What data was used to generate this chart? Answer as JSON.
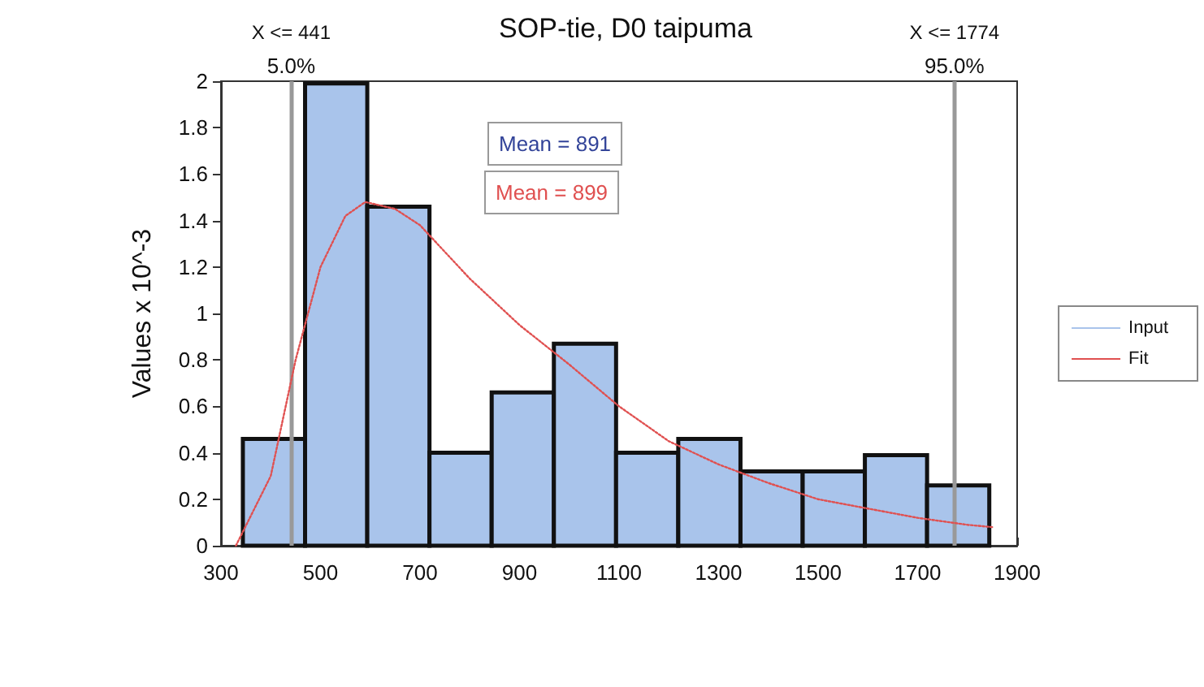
{
  "chart_data": {
    "type": "histogram",
    "title": "SOP-tie, D0 taipuma",
    "ylabel": "Values x 10^-3",
    "bins": [
      344,
      469,
      594,
      719,
      844,
      969,
      1094,
      1219,
      1344,
      1469,
      1594,
      1719,
      1844
    ],
    "series": [
      {
        "name": "Input",
        "color": "#a9c4eb",
        "values": [
          0.46,
          1.99,
          1.46,
          0.4,
          0.66,
          0.87,
          0.4,
          0.46,
          0.32,
          0.32,
          0.39,
          0.26
        ]
      },
      {
        "name": "Fit",
        "type": "line",
        "color": "#e05050",
        "line_style": "dotted",
        "x": [
          330,
          400,
          450,
          500,
          550,
          590,
          650,
          700,
          800,
          900,
          1000,
          1100,
          1200,
          1300,
          1400,
          1500,
          1600,
          1700,
          1800,
          1850
        ],
        "values": [
          0,
          0.3,
          0.8,
          1.2,
          1.42,
          1.48,
          1.45,
          1.38,
          1.15,
          0.95,
          0.78,
          0.6,
          0.45,
          0.35,
          0.27,
          0.2,
          0.16,
          0.12,
          0.09,
          0.08
        ]
      }
    ],
    "xlim": [
      300,
      1900
    ],
    "xticks": [
      300,
      500,
      700,
      900,
      1100,
      1300,
      1500,
      1700,
      1900
    ],
    "ylim": [
      0,
      2
    ],
    "yticks": [
      0,
      0.2,
      0.4,
      0.6,
      0.8,
      1,
      1.2,
      1.4,
      1.6,
      1.8,
      2
    ],
    "ref_lines": [
      {
        "axis": "x",
        "value": 441,
        "label": "X <= 441",
        "color": "#999999"
      },
      {
        "axis": "x",
        "value": 1774,
        "label": "X <= 1774",
        "color": "#999999"
      }
    ],
    "annotations": [
      {
        "text": "5.0%",
        "x": 441,
        "y": 2
      },
      {
        "text": "95.0%",
        "x": 1774,
        "y": 2
      },
      "Mean = 891",
      "Mean = 899"
    ],
    "grid": false,
    "legend": "right",
    "marker": "none"
  }
}
